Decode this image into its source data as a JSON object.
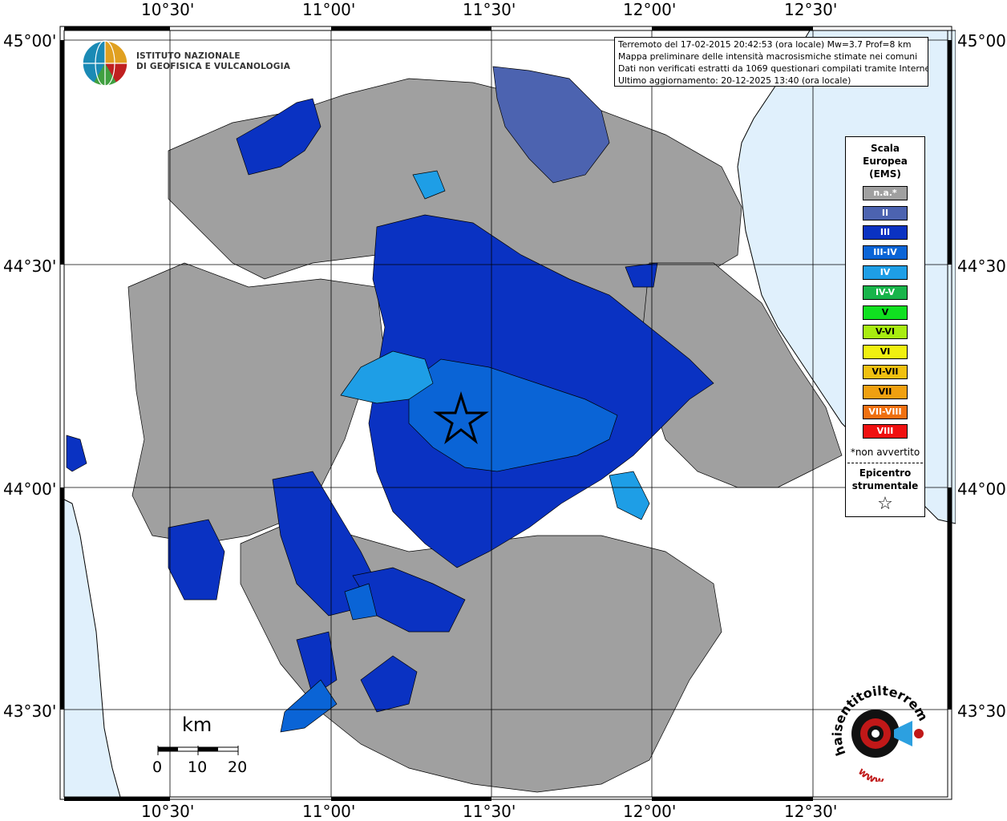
{
  "axes": {
    "top_lon": [
      "10°30'",
      "11°00'",
      "11°30'",
      "12°00'",
      "12°30'"
    ],
    "bottom_lon": [
      "10°30'",
      "11°00'",
      "11°30'",
      "12°00'",
      "12°30'"
    ],
    "left_lat": [
      "45°00'",
      "44°30'",
      "44°00'",
      "43°30'"
    ],
    "right_lat": [
      "45°00'",
      "44°30'",
      "44°00'",
      "43°30'"
    ]
  },
  "header": {
    "logo_line1": "ISTITUTO NAZIONALE",
    "logo_line2": "DI GEOFISICA E VULCANOLOGIA"
  },
  "info": {
    "line1": "Terremoto del 17-02-2015 20:42:53 (ora locale) Mw=3.7 Prof=8 km",
    "line2": "Mappa preliminare delle intensità macrosismiche stimate nei comuni",
    "line3": "Dati non verificati estratti da 1069 questionari compilati tramite Internet.",
    "line4": "Ultimo aggiornamento: 20-12-2025 13:40 (ora locale)"
  },
  "legend": {
    "title_line1": "Scala",
    "title_line2": "Europea",
    "title_line3": "(EMS)",
    "items": [
      {
        "label": "n.a.*",
        "color": "#a0a0a0"
      },
      {
        "label": "II",
        "color": "#4c63b0"
      },
      {
        "label": "III",
        "color": "#0a32c2"
      },
      {
        "label": "III-IV",
        "color": "#0a64d6"
      },
      {
        "label": "IV",
        "color": "#1e9ee6"
      },
      {
        "label": "IV-V",
        "color": "#18b44a"
      },
      {
        "label": "V",
        "color": "#10e020"
      },
      {
        "label": "V-VI",
        "color": "#a8ec10"
      },
      {
        "label": "VI",
        "color": "#f0f010"
      },
      {
        "label": "VI-VII",
        "color": "#f0c010"
      },
      {
        "label": "VII",
        "color": "#f0a010"
      },
      {
        "label": "VII-VIII",
        "color": "#f07010"
      },
      {
        "label": "VIII",
        "color": "#f01010"
      }
    ],
    "note": "*non avvertito",
    "epicenter_line1": "Epicentro",
    "epicenter_line2": "strumentale"
  },
  "scale": {
    "unit": "km",
    "ticks": [
      "0",
      "10",
      "20"
    ]
  },
  "map": {
    "sea_color": "#e0f0fc",
    "grey_color": "#a0a0a0",
    "epicenter": {
      "lon": 11.37,
      "lat": 44.17
    }
  },
  "logo_hse": {
    "text": "haisentitoilterremoto.it",
    "prefix": "www."
  }
}
